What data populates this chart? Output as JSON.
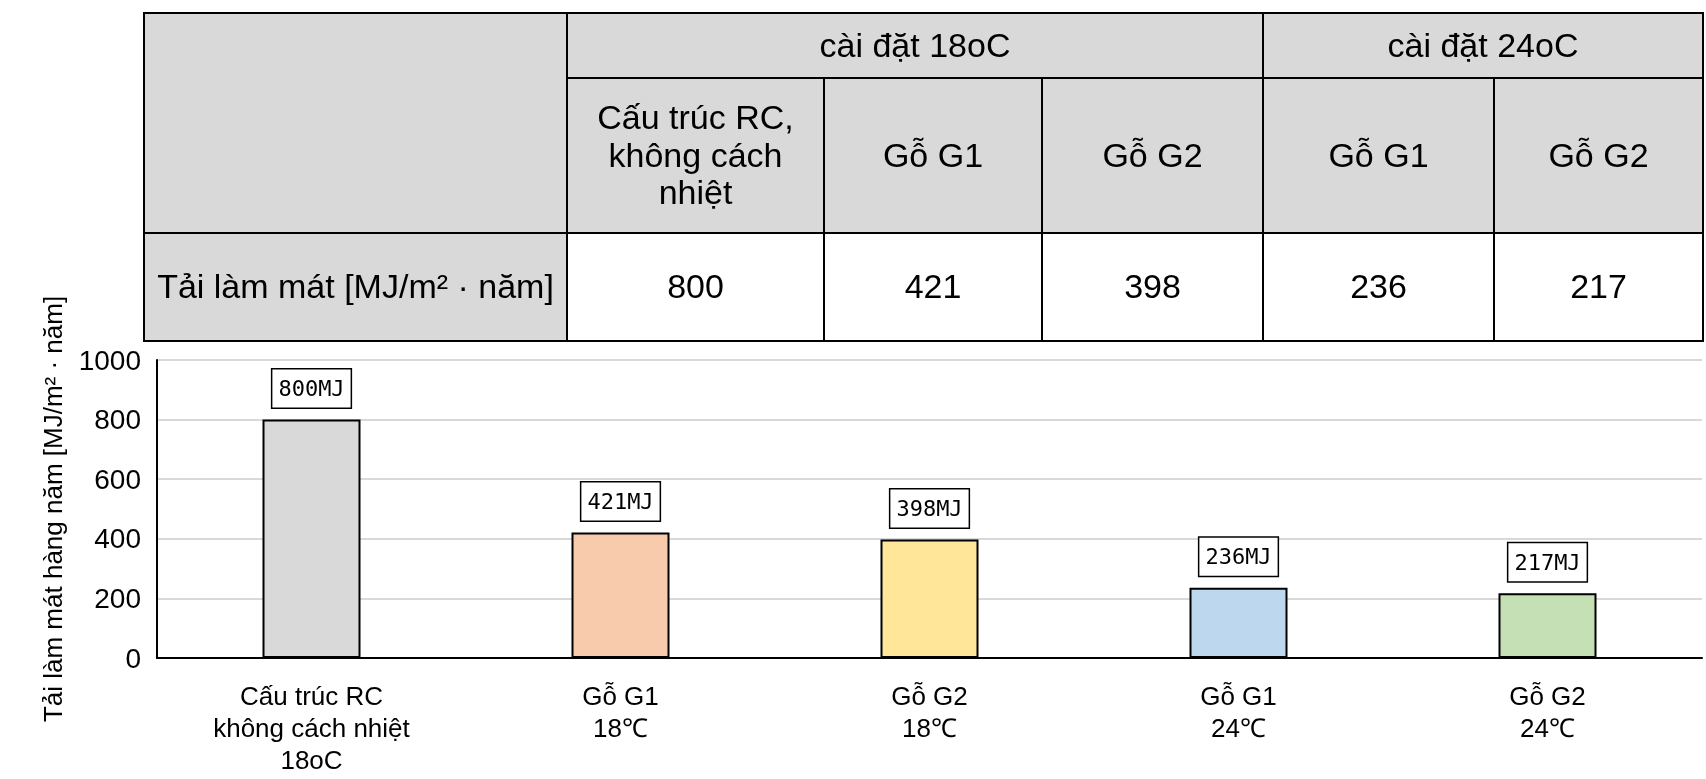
{
  "chart_data": {
    "type": "bar",
    "ylabel": "Tải làm mát hàng năm [MJ/m² · năm]",
    "categories": [
      "Cấu trúc RC\nkhông cách nhiệt\n18oC",
      "Gỗ G1\n18℃",
      "Gỗ G2\n18℃",
      "Gỗ G1\n24℃",
      "Gỗ G2\n24℃"
    ],
    "values": [
      800,
      421,
      398,
      236,
      217
    ],
    "colors": [
      "#d9d9d9",
      "#f8cbad",
      "#ffe699",
      "#bdd7ee",
      "#c5e0b4"
    ],
    "value_labels": [
      "800MJ",
      "421MJ",
      "398MJ",
      "236MJ",
      "217MJ"
    ],
    "ylim": [
      0,
      1000
    ],
    "yticks": [
      0,
      200,
      400,
      600,
      800,
      {
        "value": 1000,
        "label": "1000"
      }
    ],
    "grid": "y",
    "annotations": [
      "cài đặt 18oC",
      "cài đặt 24oC",
      "Cấu trúc RC, không cách nhiệt",
      "Gỗ G1",
      "Gỗ G2",
      "Gỗ G1",
      "Gỗ G2",
      "Tải làm mát [MJ/m² · năm]",
      "800",
      "421",
      "398",
      "236",
      "217"
    ]
  }
}
